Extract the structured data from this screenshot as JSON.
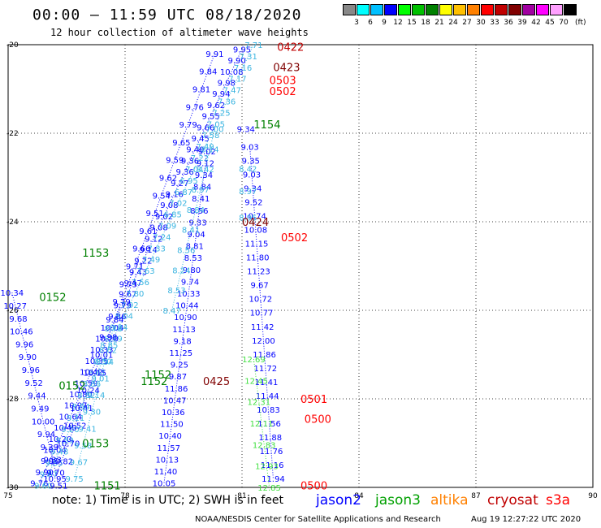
{
  "title": "00:00 – 11:59 UTC 08/18/2020",
  "subtitle": "12 hour collection of altimeter wave heights",
  "colorbar": {
    "colors": [
      "#888888",
      "#00ffff",
      "#00c0ff",
      "#0000ff",
      "#00ff00",
      "#00c000",
      "#008000",
      "#ffff00",
      "#ffc000",
      "#ff8000",
      "#ff0000",
      "#c00000",
      "#800000",
      "#a000a0",
      "#ff00ff",
      "#ffa0ff",
      "#000000"
    ],
    "labels": [
      "3",
      "6",
      "9",
      "12",
      "15",
      "18",
      "21",
      "24",
      "27",
      "30",
      "33",
      "36",
      "39",
      "42",
      "45",
      "70"
    ],
    "unit": "(ft)"
  },
  "note": "note: 1) Time is in UTC; 2) SWH is in feet",
  "legend": [
    {
      "name": "jason2",
      "color": "#0000ff"
    },
    {
      "name": "jason3",
      "color": "#00a000"
    },
    {
      "name": "altika",
      "color": "#ff8000"
    },
    {
      "name": "cryosat",
      "color": "#c00000"
    },
    {
      "name": "s3a",
      "color": "#ff0000"
    }
  ],
  "credit": "NOAA/NESDIS Center for Satellite Applications and Research",
  "timestamp": "Aug 19 12:27:22 UTC 2020",
  "map": {
    "lon_range": [
      75,
      90
    ],
    "lat_range": [
      -30,
      -20
    ],
    "lon_ticks": [
      "75",
      "78",
      "81",
      "84",
      "87",
      "90"
    ],
    "lat_ticks": [
      "-20",
      "-22",
      "-24",
      "-26",
      "-28",
      "-30"
    ],
    "grid": "dotted",
    "time_labels": [
      {
        "text": "0422",
        "color": "#c00000",
        "lon": 81.9,
        "lat": -20.05
      },
      {
        "text": "0423",
        "color": "#800000",
        "lon": 81.8,
        "lat": -20.5
      },
      {
        "text": "0503",
        "color": "#ff0000",
        "lon": 81.7,
        "lat": -20.8
      },
      {
        "text": "0502",
        "color": "#ff0000",
        "lon": 81.7,
        "lat": -21.05
      },
      {
        "text": "1154",
        "color": "#008000",
        "lon": 81.3,
        "lat": -21.8
      },
      {
        "text": "0424",
        "color": "#800000",
        "lon": 81.0,
        "lat": -24.0
      },
      {
        "text": "0502",
        "color": "#ff0000",
        "lon": 82.0,
        "lat": -24.35
      },
      {
        "text": "1153",
        "color": "#008000",
        "lon": 76.9,
        "lat": -24.7
      },
      {
        "text": "0152",
        "color": "#008000",
        "lon": 75.8,
        "lat": -25.7
      },
      {
        "text": "0152",
        "color": "#008000",
        "lon": 76.3,
        "lat": -27.7
      },
      {
        "text": "1152",
        "color": "#008000",
        "lon": 78.5,
        "lat": -27.45
      },
      {
        "text": "1152",
        "color": "#008000",
        "lon": 78.4,
        "lat": -27.6
      },
      {
        "text": "0425",
        "color": "#800000",
        "lon": 80.0,
        "lat": -27.6
      },
      {
        "text": "0501",
        "color": "#ff0000",
        "lon": 82.5,
        "lat": -28.0
      },
      {
        "text": "0500",
        "color": "#ff0000",
        "lon": 82.6,
        "lat": -28.45
      },
      {
        "text": "0153",
        "color": "#008000",
        "lon": 76.9,
        "lat": -29.0
      },
      {
        "text": "1151",
        "color": "#008000",
        "lon": 77.2,
        "lat": -29.95
      },
      {
        "text": "0500",
        "color": "#ff0000",
        "lon": 82.5,
        "lat": -29.95
      }
    ],
    "tracks": [
      {
        "name": "jason2-a",
        "color": "#0000ff",
        "start": [
          81.0,
          -20.1
        ],
        "end": [
          75.8,
          -29.9
        ],
        "values": [
          "9.95",
          "9.90",
          "10.08",
          "9.98",
          "9.94",
          "9.62",
          "9.55",
          "9.66",
          "9.45",
          "9.40",
          "9.36",
          "9.36",
          "9.27",
          "9.16",
          "9.08",
          "9.02",
          "9.08",
          "9.12",
          "9.14",
          "9.22",
          "9.43",
          "9.47",
          "9.67",
          "9.79",
          "9.86",
          "10.04",
          "10.20",
          "10.33",
          "10.35",
          "10.42",
          "10.59",
          "10.80",
          "10.97",
          "10.64",
          "10.40",
          "10.20",
          "10.04",
          "9.95",
          "9.90",
          "9.76"
        ]
      },
      {
        "name": "altika-a",
        "color": "#3ab4e0",
        "start": [
          81.3,
          -20.0
        ],
        "end": [
          75.9,
          -29.95
        ],
        "values": [
          "7.71",
          "7.31",
          "7.16",
          "7.17",
          "7.47",
          "7.36",
          "7.25",
          "7.05",
          "7.58",
          "7.49",
          "7.22",
          "7.04",
          "6.95",
          "6.87",
          "7.02",
          "6.85",
          "7.09",
          "7.24",
          "7.33",
          "7.49",
          "7.63",
          "7.56",
          "7.80",
          "7.92",
          "8.04",
          "8.24",
          "8.39",
          "8.62",
          "8.50",
          "8.61",
          "8.86",
          "8.82",
          "8.94",
          "9.11",
          "9.20",
          "9.39",
          "9.48",
          "9.55",
          "9.67",
          "9.60"
        ]
      },
      {
        "name": "jason2-b",
        "color": "#0000ff",
        "start": [
          80.3,
          -20.2
        ],
        "end": [
          76.2,
          -29.8
        ],
        "values": [
          "9.91",
          "9.84",
          "9.81",
          "9.76",
          "9.79",
          "9.65",
          "9.59",
          "9.62",
          "9.54",
          "9.51",
          "9.61",
          "9.66",
          "9.71",
          "9.73",
          "9.79",
          "9.84",
          "9.98",
          "10.01",
          "10.15",
          "10.24",
          "10.41",
          "10.52",
          "10.70",
          "10.82",
          "10.95"
        ]
      },
      {
        "name": "altika-b",
        "color": "#3ab4e0",
        "start": [
          77.7,
          -26.4
        ],
        "end": [
          76.7,
          -29.8
        ],
        "values": [
          "8.78",
          "8.85",
          "8.94",
          "9.01",
          "9.14",
          "9.30",
          "9.41",
          "9.58",
          "9.67",
          "9.75"
        ]
      },
      {
        "name": "jason2-c",
        "color": "#0000ff",
        "start": [
          75.1,
          -25.6
        ],
        "end": [
          76.3,
          -29.95
        ],
        "values": [
          "10.34",
          "10.27",
          "9.68",
          "10.46",
          "9.96",
          "9.90",
          "9.96",
          "9.52",
          "9.44",
          "9.49",
          "10.00",
          "9.94",
          "9.39",
          "9.33",
          "9.70",
          "9.51"
        ]
      },
      {
        "name": "jason2-d",
        "color": "#0000ff",
        "start": [
          80.1,
          -22.4
        ],
        "end": [
          79.0,
          -29.9
        ],
        "values": [
          "9.02",
          "9.12",
          "9.34",
          "8.84",
          "8.41",
          "8.56",
          "9.33",
          "9.04",
          "8.81",
          "8.53",
          "9.80",
          "9.74",
          "10.33",
          "10.44",
          "10.90",
          "11.13",
          "9.18",
          "11.25",
          "9.25",
          "9.87",
          "11.86",
          "10.47",
          "10.36",
          "11.50",
          "10.40",
          "11.57",
          "10.13",
          "11.40",
          "10.05"
        ]
      },
      {
        "name": "altika-c",
        "color": "#3ab4e0",
        "start": [
          80.3,
          -21.9
        ],
        "end": [
          79.2,
          -26.0
        ],
        "values": [
          "7.00",
          "8.14",
          "8.42",
          "8.97",
          "8.84",
          "8.41",
          "8.56",
          "8.24",
          "8.53",
          "8.47"
        ]
      },
      {
        "name": "jason2-e",
        "color": "#0000ff",
        "start": [
          81.2,
          -22.3
        ],
        "end": [
          81.8,
          -29.8
        ],
        "values": [
          "9.03",
          "9.35",
          "9.03",
          "9.34",
          "9.52",
          "10.74",
          "10.08",
          "11.15",
          "11.80",
          "11.23",
          "9.67",
          "10.72",
          "10.77",
          "11.42",
          "12.00",
          "11.86",
          "11.72",
          "11.41",
          "11.44",
          "10.83",
          "11.56",
          "11.88",
          "11.76",
          "11.16",
          "11.94"
        ]
      },
      {
        "name": "jason3-e",
        "color": "#40e040",
        "start": [
          81.3,
          -27.1
        ],
        "end": [
          81.7,
          -30.0
        ],
        "values": [
          "12.69",
          "12.45",
          "12.31",
          "12.11",
          "12.83",
          "12.93",
          "12.85"
        ]
      }
    ],
    "point_labels": [
      {
        "text": "9.34",
        "color": "#0000ff",
        "lon": 81.1,
        "lat": -21.9
      },
      {
        "text": "8.42",
        "color": "#3ab4e0",
        "lon": 81.15,
        "lat": -22.8
      },
      {
        "text": "8.97",
        "color": "#3ab4e0",
        "lon": 81.15,
        "lat": -23.3
      },
      {
        "text": "8.95",
        "color": "#3ab4e0",
        "lon": 81.15,
        "lat": -23.9
      }
    ]
  }
}
